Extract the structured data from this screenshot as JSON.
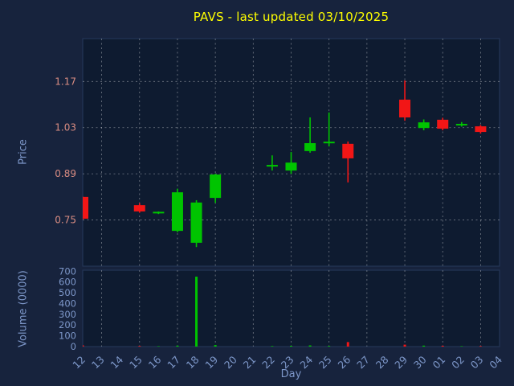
{
  "symbol": "PAVS",
  "last_updated": "03/10/2025",
  "colors": {
    "background": "#17233D",
    "plot_background": "#0E1B30",
    "title": "#FFFF00",
    "axis_label": "#7D97C9",
    "price_tick": "#D98C82",
    "grid": "#FFFFFF",
    "spine": "#26395B",
    "up": "#00C400",
    "down": "#F21616"
  },
  "chart_data": {
    "type": "candlestick",
    "title": "PAVS - last updated 03/10/2025",
    "xlabel": "Day",
    "ylabel": "Price",
    "ylabel2": "Volume (0000)",
    "grid": "dashed",
    "x_categories": [
      "12",
      "13",
      "14",
      "15",
      "16",
      "17",
      "18",
      "19",
      "20",
      "21",
      "22",
      "23",
      "24",
      "25",
      "26",
      "27",
      "28",
      "29",
      "30",
      "01",
      "02",
      "03",
      "04"
    ],
    "grid_x_categories": [
      "13",
      "15",
      "17",
      "19",
      "21",
      "23",
      "25",
      "27",
      "29",
      "01",
      "03"
    ],
    "price_range": [
      0.61,
      1.3
    ],
    "price_ticks": [
      {
        "label": "1.17",
        "value": 1.17
      },
      {
        "label": "1.03",
        "value": 1.03
      },
      {
        "label": "0.89",
        "value": 0.89
      },
      {
        "label": "0.75",
        "value": 0.75
      }
    ],
    "volume_range": [
      0,
      710
    ],
    "volume_ticks": [
      {
        "label": "700",
        "value": 700
      },
      {
        "label": "600",
        "value": 600
      },
      {
        "label": "500",
        "value": 500
      },
      {
        "label": "400",
        "value": 400
      },
      {
        "label": "300",
        "value": 300
      },
      {
        "label": "200",
        "value": 200
      },
      {
        "label": "100",
        "value": 100
      },
      {
        "label": "0",
        "value": 0
      }
    ],
    "candles": [
      {
        "day": "12",
        "open": 0.82,
        "high": 0.821,
        "low": 0.752,
        "close": 0.754,
        "volume": 12
      },
      {
        "day": "15",
        "open": 0.795,
        "high": 0.801,
        "low": 0.772,
        "close": 0.776,
        "volume": 6
      },
      {
        "day": "16",
        "open": 0.771,
        "high": 0.776,
        "low": 0.768,
        "close": 0.774,
        "volume": 4
      },
      {
        "day": "17",
        "open": 0.717,
        "high": 0.845,
        "low": 0.713,
        "close": 0.834,
        "volume": 9
      },
      {
        "day": "18",
        "open": 0.681,
        "high": 0.81,
        "low": 0.668,
        "close": 0.803,
        "volume": 650
      },
      {
        "day": "19",
        "open": 0.817,
        "high": 0.89,
        "low": 0.802,
        "close": 0.888,
        "volume": 14
      },
      {
        "day": "22",
        "open": 0.912,
        "high": 0.946,
        "low": 0.9,
        "close": 0.917,
        "volume": 5
      },
      {
        "day": "23",
        "open": 0.9,
        "high": 0.956,
        "low": 0.89,
        "close": 0.924,
        "volume": 7
      },
      {
        "day": "24",
        "open": 0.959,
        "high": 1.061,
        "low": 0.954,
        "close": 0.983,
        "volume": 11
      },
      {
        "day": "25",
        "open": 0.983,
        "high": 1.076,
        "low": 0.973,
        "close": 0.987,
        "volume": 6
      },
      {
        "day": "26",
        "open": 0.981,
        "high": 0.988,
        "low": 0.864,
        "close": 0.937,
        "volume": 42
      },
      {
        "day": "29",
        "open": 1.115,
        "high": 1.173,
        "low": 1.051,
        "close": 1.061,
        "volume": 18
      },
      {
        "day": "30",
        "open": 1.029,
        "high": 1.055,
        "low": 1.022,
        "close": 1.046,
        "volume": 9
      },
      {
        "day": "01",
        "open": 1.054,
        "high": 1.06,
        "low": 1.022,
        "close": 1.027,
        "volume": 8
      },
      {
        "day": "02",
        "open": 1.037,
        "high": 1.047,
        "low": 1.033,
        "close": 1.041,
        "volume": 4
      },
      {
        "day": "03",
        "open": 1.034,
        "high": 1.038,
        "low": 1.012,
        "close": 1.017,
        "volume": 5
      }
    ]
  }
}
